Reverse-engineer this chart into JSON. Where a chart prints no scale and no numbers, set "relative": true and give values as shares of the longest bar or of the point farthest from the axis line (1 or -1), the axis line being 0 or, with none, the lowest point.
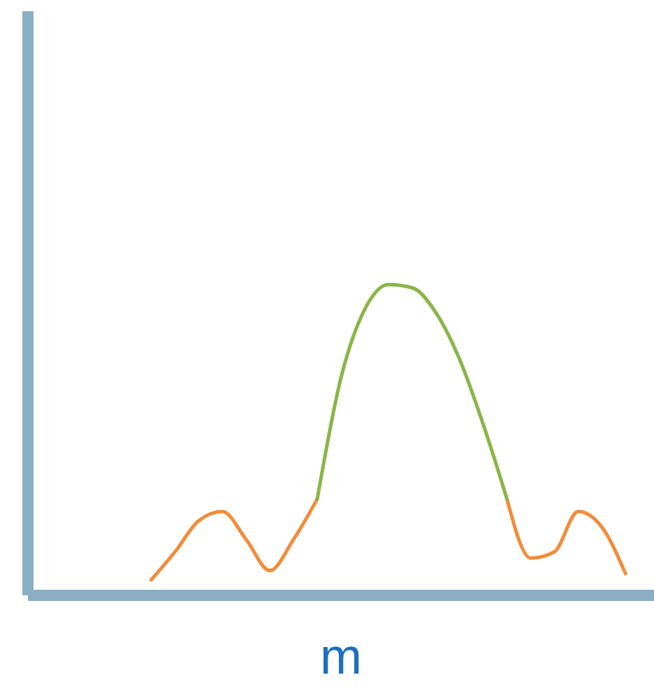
{
  "chart_data": {
    "type": "line",
    "relative": true,
    "xlabel": "m",
    "categories": [
      null,
      null,
      null,
      null,
      null,
      null,
      null,
      null,
      null,
      null,
      null,
      null,
      null,
      null,
      null,
      null,
      null,
      null,
      null,
      null,
      null
    ],
    "series": [
      {
        "color": "#f28c3a",
        "values": [
          0.05,
          0.14,
          0.24,
          0.27,
          0.18,
          0.08,
          0.18,
          0.31,
          null,
          null,
          null,
          null,
          null,
          null,
          null,
          0.31,
          0.12,
          0.14,
          0.27,
          0.22,
          0.07
        ]
      },
      {
        "color": "#8ab548",
        "values": [
          null,
          null,
          null,
          null,
          null,
          null,
          null,
          0.31,
          0.7,
          0.92,
          1,
          0.99,
          0.91,
          0.76,
          0.55,
          0.31,
          null,
          null,
          null,
          null,
          null
        ]
      }
    ],
    "grid": false,
    "legend": false,
    "marker": "none",
    "line_style": "solid"
  }
}
